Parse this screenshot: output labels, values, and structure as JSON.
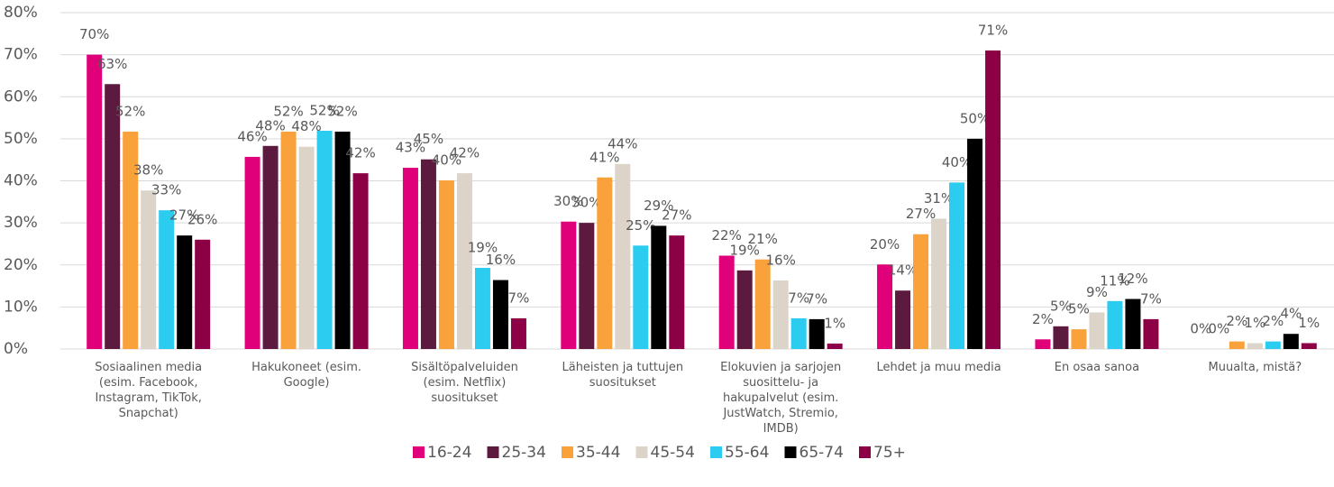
{
  "chart_data": {
    "type": "bar",
    "categories": [
      "Sosiaalinen media (esim. Facebook, Instagram, TikTok, Snapchat)",
      "Hakukoneet (esim. Google)",
      "Sisältöpalveluiden (esim. Netflix) suositukset",
      "Läheisten ja tuttujen suositukset",
      "Elokuvien ja sarjojen suosittelu- ja hakupalvelut (esim. JustWatch, Stremio, IMDB)",
      "Lehdet ja muu media",
      "En osaa sanoa",
      "Muualta, mistä?"
    ],
    "series": [
      {
        "name": "16-24",
        "color": "#e0007a",
        "values": [
          70,
          45.7,
          43.1,
          30.3,
          22.2,
          20.1,
          2.3,
          0
        ],
        "value_labels": [
          "70%",
          "46%",
          "43%",
          "30%",
          "22%",
          "20%",
          "2%",
          "0%"
        ]
      },
      {
        "name": "25-34",
        "color": "#5c1a3f",
        "values": [
          63,
          48.3,
          45.1,
          30,
          18.7,
          13.9,
          5.4,
          0
        ],
        "value_labels": [
          "63%",
          "48%",
          "45%",
          "30%",
          "19%",
          "14%",
          "5%",
          "0%"
        ]
      },
      {
        "name": "35-44",
        "color": "#f9a23b",
        "values": [
          51.7,
          51.7,
          40.1,
          40.8,
          21.3,
          27.3,
          4.7,
          1.8
        ],
        "value_labels": [
          "52%",
          "52%",
          "40%",
          "41%",
          "21%",
          "27%",
          "5%",
          "2%"
        ]
      },
      {
        "name": "45-54",
        "color": "#dcd3c9",
        "values": [
          37.7,
          48.1,
          41.8,
          44,
          16.3,
          31,
          8.7,
          1.4
        ],
        "value_labels": [
          "38%",
          "48%",
          "42%",
          "44%",
          "16%",
          "31%",
          "9%",
          "1%"
        ]
      },
      {
        "name": "55-64",
        "color": "#2ccbf0",
        "values": [
          33,
          51.9,
          19.3,
          24.6,
          7.3,
          39.6,
          11.4,
          1.8
        ],
        "value_labels": [
          "33%",
          "52%",
          "19%",
          "25%",
          "7%",
          "40%",
          "11%",
          "2%"
        ]
      },
      {
        "name": "65-74",
        "color": "#000000",
        "values": [
          27,
          51.7,
          16.4,
          29.3,
          7.1,
          50,
          11.9,
          3.6
        ],
        "value_labels": [
          "27%",
          "52%",
          "16%",
          "29%",
          "7%",
          "50%",
          "12%",
          "4%"
        ]
      },
      {
        "name": "75+",
        "color": "#8c0046",
        "values": [
          26,
          41.8,
          7.3,
          27,
          1.3,
          71,
          7.1,
          1.4
        ],
        "value_labels": [
          "26%",
          "42%",
          "7%",
          "27%",
          "1%",
          "71%",
          "7%",
          "1%"
        ]
      }
    ],
    "ylim": [
      0,
      80
    ],
    "yticks": [
      {
        "value": 0,
        "label": "0%"
      },
      {
        "value": 10,
        "label": "10%"
      },
      {
        "value": 20,
        "label": "20%"
      },
      {
        "value": 30,
        "label": "30%"
      },
      {
        "value": 40,
        "label": "40%"
      },
      {
        "value": 50,
        "label": "50%"
      },
      {
        "value": 60,
        "label": "60%"
      },
      {
        "value": 70,
        "label": "70%"
      },
      {
        "value": 80,
        "label": "80%"
      }
    ],
    "grid": true,
    "legend": "bottom"
  }
}
